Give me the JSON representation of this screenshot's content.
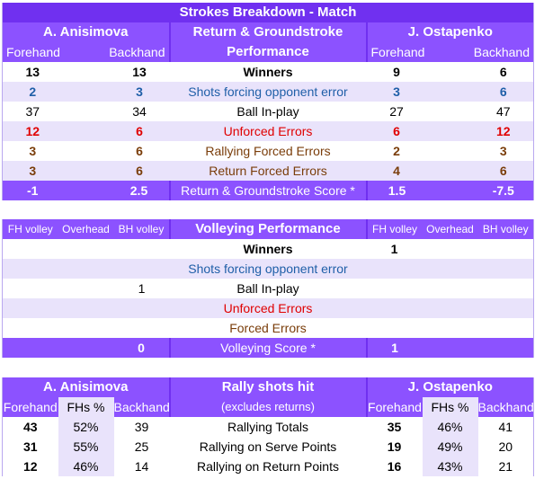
{
  "strokes": {
    "title": "Strokes Breakdown - Match",
    "player_left": "A. Anisimova",
    "player_right": "J. Ostapenko",
    "center_header_1": "Return & Groundstroke",
    "center_header_2": "Performance",
    "col_forehand": "Forehand",
    "col_backhand": "Backhand",
    "rows": [
      {
        "lfh": "13",
        "lbh": "13",
        "label": "Winners",
        "rfh": "9",
        "rbh": "6"
      },
      {
        "lfh": "2",
        "lbh": "3",
        "label": "Shots forcing opponent error",
        "rfh": "3",
        "rbh": "6"
      },
      {
        "lfh": "37",
        "lbh": "34",
        "label": "Ball In-play",
        "rfh": "27",
        "rbh": "47"
      },
      {
        "lfh": "12",
        "lbh": "6",
        "label": "Unforced Errors",
        "rfh": "6",
        "rbh": "12"
      },
      {
        "lfh": "3",
        "lbh": "6",
        "label": "Rallying Forced Errors",
        "rfh": "2",
        "rbh": "3"
      },
      {
        "lfh": "3",
        "lbh": "6",
        "label": "Return Forced Errors",
        "rfh": "4",
        "rbh": "6"
      }
    ],
    "score": {
      "lfh": "-1",
      "lbh": "2.5",
      "label": "Return & Groundstroke Score *",
      "rfh": "1.5",
      "rbh": "-7.5"
    }
  },
  "volley": {
    "col_fh": "FH volley",
    "col_oh": "Overhead",
    "col_bh": "BH volley",
    "title": "Volleying Performance",
    "rows": [
      {
        "lfh": "",
        "loh": "",
        "lbh": "",
        "label": "Winners",
        "rfh": "1",
        "roh": "",
        "rbh": ""
      },
      {
        "lfh": "",
        "loh": "",
        "lbh": "",
        "label": "Shots forcing opponent error",
        "rfh": "",
        "roh": "",
        "rbh": ""
      },
      {
        "lfh": "",
        "loh": "",
        "lbh": "1",
        "label": "Ball In-play",
        "rfh": "",
        "roh": "",
        "rbh": ""
      },
      {
        "lfh": "",
        "loh": "",
        "lbh": "",
        "label": "Unforced Errors",
        "rfh": "",
        "roh": "",
        "rbh": ""
      },
      {
        "lfh": "",
        "loh": "",
        "lbh": "",
        "label": "Forced Errors",
        "rfh": "",
        "roh": "",
        "rbh": ""
      }
    ],
    "score": {
      "lbh": "0",
      "label": "Volleying Score *",
      "rfh": "1"
    }
  },
  "rally": {
    "player_left": "A. Anisimova",
    "player_right": "J. Ostapenko",
    "title": "Rally shots hit",
    "subtitle": "(excludes returns)",
    "col_forehand": "Forehand",
    "col_fhpct": "FHs %",
    "col_backhand": "Backhand",
    "rows": [
      {
        "lfh": "43",
        "lpct": "52%",
        "lbh": "39",
        "label": "Rallying Totals",
        "rfh": "35",
        "rpct": "46%",
        "rbh": "41"
      },
      {
        "lfh": "31",
        "lpct": "55%",
        "lbh": "25",
        "label": "Rallying on Serve Points",
        "rfh": "19",
        "rpct": "49%",
        "rbh": "20"
      },
      {
        "lfh": "12",
        "lpct": "46%",
        "lbh": "14",
        "label": "Rallying on Return Points",
        "rfh": "16",
        "rpct": "43%",
        "rbh": "21"
      }
    ]
  },
  "colors": {
    "header": "#8c52ff",
    "header_dark": "#7030f0",
    "band": "#e9e3fb",
    "blue": "#1f5fa8",
    "red": "#e00000",
    "brown": "#7a3d0a"
  }
}
